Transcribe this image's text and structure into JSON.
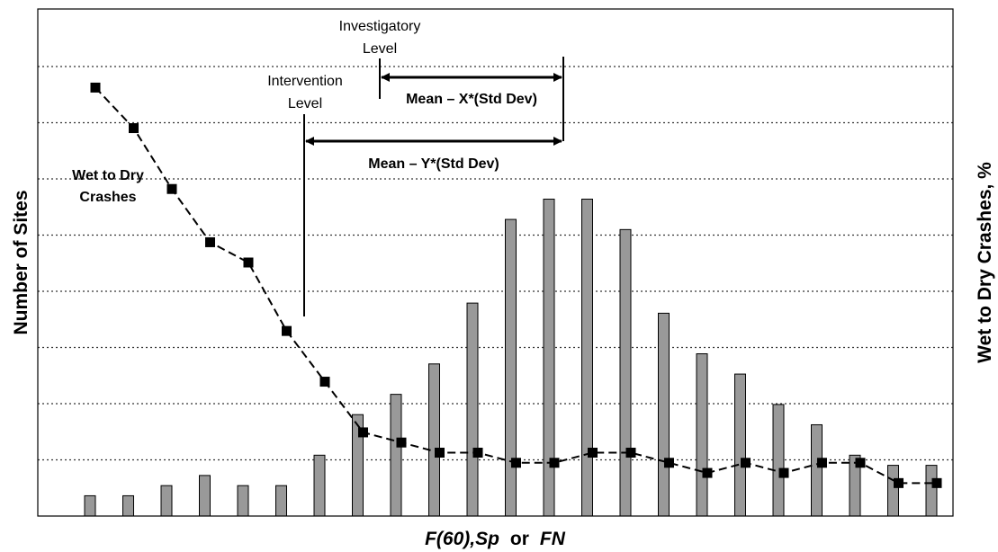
{
  "chart_data": {
    "type": "bar",
    "title": "",
    "xlabel_parts": [
      "F(60)",
      ",Sp",
      "or",
      "FN"
    ],
    "ylabel": "Number of Sites",
    "y2label": "Wet to Dry Crashes, %",
    "grid": true,
    "ylim": [
      0,
      10
    ],
    "bar_series": {
      "name": "",
      "color": "#999999",
      "values": [
        0.4,
        0.4,
        0.6,
        0.8,
        0.6,
        0.6,
        1.2,
        2.0,
        2.4,
        3.0,
        4.2,
        5.85,
        6.25,
        6.25,
        5.65,
        4.0,
        3.2,
        2.8,
        2.2,
        1.8,
        1.2,
        1.0,
        1.0
      ]
    },
    "line_series": {
      "name": "Wet to Dry Crashes",
      "label_lines": [
        "Wet to Dry",
        "Crashes"
      ],
      "color": "#000000",
      "values": [
        8.45,
        7.65,
        6.45,
        5.4,
        5.0,
        3.65,
        2.65,
        1.65,
        1.45,
        1.25,
        1.25,
        1.05,
        1.05,
        1.25,
        1.25,
        1.05,
        0.85,
        1.05,
        0.85,
        1.05,
        1.05,
        0.65,
        0.65
      ]
    },
    "annotations": {
      "investigatory": [
        "Investigatory",
        "Level"
      ],
      "intervention": [
        "Intervention",
        "Level"
      ],
      "mean_x": "Mean – X*(Std Dev)",
      "mean_y": "Mean – Y*(Std Dev)"
    },
    "colors": {
      "bar_fill": "#999999",
      "bar_stroke": "#000000",
      "line": "#000000",
      "grid": "#333333"
    }
  }
}
